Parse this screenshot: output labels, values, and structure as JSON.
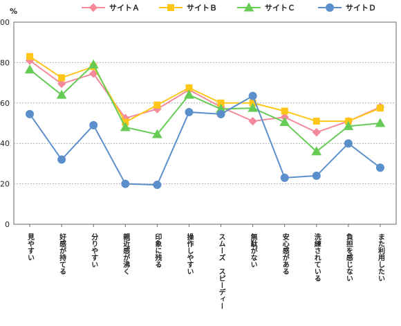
{
  "chart_data": {
    "type": "line",
    "ylabel": "%",
    "ylim": [
      0,
      100
    ],
    "y_ticks": [
      0,
      20,
      40,
      60,
      80,
      100
    ],
    "grid": "horizontal dashed",
    "legend_position": "top",
    "categories": [
      "見やすい",
      "好感が持てる",
      "分りやすい",
      "親近感が沸く",
      "印象に残る",
      "操作しやすい",
      "スムーズ　スピーディー",
      "無駄がない",
      "安心感がある",
      "洗練されている",
      "負担を感じない",
      "また利用したい"
    ],
    "series": [
      {
        "name": "サイトＡ",
        "color": "#f4899a",
        "marker": "diamond",
        "values": [
          81,
          69.5,
          74.5,
          52.5,
          57,
          66.5,
          58,
          51,
          53,
          45.5,
          51,
          58
        ]
      },
      {
        "name": "サイトＢ",
        "color": "#ffc61a",
        "marker": "square",
        "values": [
          83,
          72.5,
          78,
          50.5,
          59,
          67.5,
          60,
          60,
          56,
          51,
          51,
          57.5
        ]
      },
      {
        "name": "サイトＣ",
        "color": "#66cc55",
        "marker": "triangle",
        "values": [
          76.5,
          64,
          79,
          48,
          44.5,
          64,
          57,
          57.5,
          50.5,
          36,
          48.5,
          50
        ]
      },
      {
        "name": "サイトＤ",
        "color": "#5b8fcc",
        "marker": "circle",
        "values": [
          54.5,
          32,
          49,
          20,
          19.5,
          55.5,
          54.5,
          63.5,
          23,
          24,
          40,
          28
        ]
      }
    ]
  }
}
